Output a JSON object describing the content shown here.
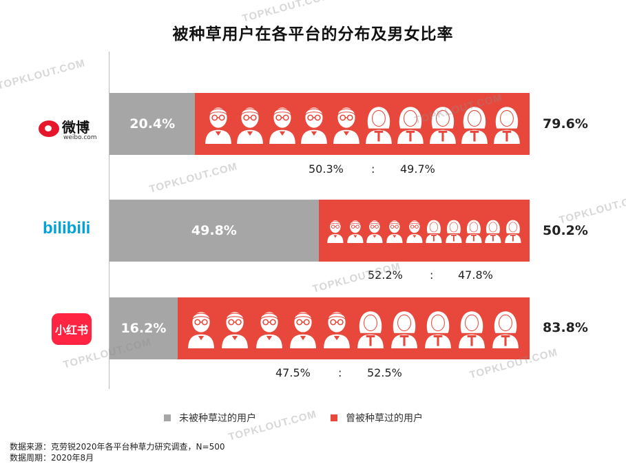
{
  "chart_data": {
    "type": "bar",
    "title": "被种草用户在各平台的分布及男女比率",
    "categories": [
      "微博",
      "bilibili",
      "小红书"
    ],
    "series": [
      {
        "name": "未被种草过的用户",
        "values": [
          20.4,
          49.8,
          16.2
        ],
        "color": "#a6a6a6"
      },
      {
        "name": "曾被种草过的用户",
        "values": [
          79.6,
          50.2,
          83.8
        ],
        "color": "#e8483c"
      }
    ],
    "gender_ratio": [
      {
        "male": "50.3%",
        "sep": ":",
        "female": "49.7%",
        "male_value": 50.3,
        "female_value": 49.7
      },
      {
        "male": "52.2%",
        "sep": ":",
        "female": "47.8%",
        "male_value": 52.2,
        "female_value": 47.8
      },
      {
        "male": "47.5%",
        "sep": ":",
        "female": "52.5%",
        "male_value": 47.5,
        "female_value": 52.5
      }
    ],
    "value_labels": {
      "gray": [
        "20.4%",
        "49.8%",
        "16.2%"
      ],
      "red": [
        "79.6%",
        "50.2%",
        "83.8%"
      ]
    },
    "stacked": true,
    "ylim": [
      0,
      100
    ]
  },
  "platforms": {
    "weibo": {
      "cn": "微博",
      "en": "weibo.com"
    },
    "bilibili": {
      "name": "bilibili"
    },
    "xhs": {
      "name": "小红书"
    }
  },
  "legend": {
    "gray_label": "未被种草过的用户",
    "red_label": "曾被种草过的用户"
  },
  "footnote": {
    "source": "数据来源：克劳锐2020年各平台种草力研究调查，N=500",
    "period": "数据周期：2020年8月"
  },
  "watermark": "TOPKLOUT.COM"
}
